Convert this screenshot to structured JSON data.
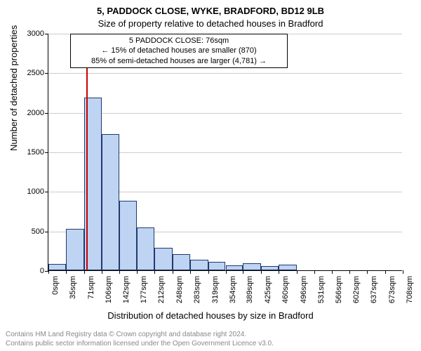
{
  "titles": {
    "main": "5, PADDOCK CLOSE, WYKE, BRADFORD, BD12 9LB",
    "sub": "Size of property relative to detached houses in Bradford"
  },
  "info_box": {
    "line1": "5 PADDOCK CLOSE: 76sqm",
    "line2": "← 15% of detached houses are smaller (870)",
    "line3": "85% of semi-detached houses are larger (4,781) →"
  },
  "axes": {
    "ylabel": "Number of detached properties",
    "xlabel": "Distribution of detached houses by size in Bradford",
    "ylim": [
      0,
      3000
    ],
    "yticks": [
      0,
      500,
      1000,
      1500,
      2000,
      2500,
      3000
    ],
    "grid_color": "#cccccc",
    "label_fontsize": 13,
    "tick_fontsize": 11
  },
  "chart": {
    "type": "histogram",
    "bar_fill": "#bfd3f2",
    "bar_border": "#1f3a6e",
    "marker_color": "#cc0000",
    "marker_x_value": 76,
    "categories": [
      "0sqm",
      "35sqm",
      "71sqm",
      "106sqm",
      "142sqm",
      "177sqm",
      "212sqm",
      "248sqm",
      "283sqm",
      "319sqm",
      "354sqm",
      "389sqm",
      "425sqm",
      "460sqm",
      "496sqm",
      "531sqm",
      "566sqm",
      "602sqm",
      "637sqm",
      "673sqm",
      "708sqm"
    ],
    "values": [
      80,
      520,
      2180,
      1720,
      880,
      540,
      280,
      200,
      130,
      110,
      60,
      90,
      50,
      70,
      0,
      0,
      0,
      0,
      0,
      0
    ],
    "background_color": "#ffffff"
  },
  "footer": {
    "line1": "Contains HM Land Registry data © Crown copyright and database right 2024.",
    "line2": "Contains public sector information licensed under the Open Government Licence v3.0."
  }
}
